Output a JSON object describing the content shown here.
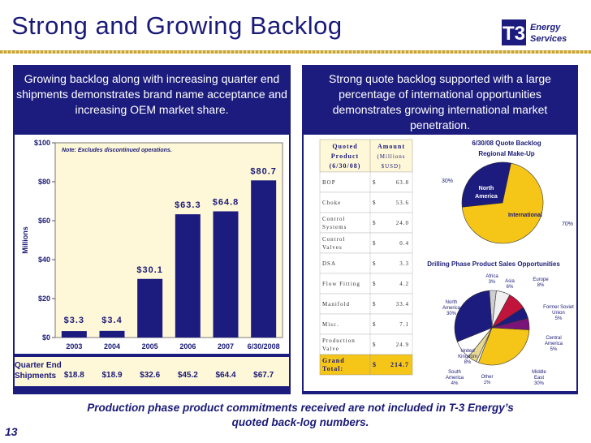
{
  "title": "Strong and Growing Backlog",
  "logo": {
    "mark": "T3",
    "line1": "Energy",
    "line2": "Services"
  },
  "left_heading": "Growing backlog along with increasing quarter end shipments demonstrates brand name acceptance and increasing OEM market share.",
  "right_heading": "Strong quote backlog supported with a large percentage of international opportunities demonstrates growing international market penetration.",
  "chart_data": [
    {
      "type": "bar",
      "note": "Note: Excludes discontinued operations.",
      "ylabel": "Millions",
      "categories": [
        "2003",
        "2004",
        "2005",
        "2006",
        "2007",
        "6/30/2008"
      ],
      "values": [
        3.3,
        3.4,
        30.1,
        63.3,
        64.8,
        80.7
      ],
      "value_labels": [
        "$3.3",
        "$3.4",
        "$30.1",
        "$63.3",
        "$64.8",
        "$80.7"
      ],
      "ylim": [
        0,
        100
      ],
      "yticks": [
        "$0",
        "$20",
        "$40",
        "$60",
        "$80",
        "$100"
      ],
      "bar_color": "#1c1c7e"
    },
    {
      "type": "pie",
      "title": "6/30/08 Quote Backlog Regional Make-Up",
      "slices": [
        {
          "label": "International",
          "value": 70,
          "pct_label": "70%",
          "color": "#f5c518"
        },
        {
          "label": "North America",
          "value": 30,
          "pct_label": "30%",
          "color": "#1c1c7e"
        }
      ]
    },
    {
      "type": "pie",
      "title": "Drilling Phase Product Sales Opportunities",
      "slices": [
        {
          "label": "Africa",
          "value": 3,
          "pct_label": "3%",
          "color": "#cfcfcf"
        },
        {
          "label": "Asia",
          "value": 6,
          "pct_label": "6%",
          "color": "#f0f0f0"
        },
        {
          "label": "Europe",
          "value": 8,
          "pct_label": "8%",
          "color": "#c0143c"
        },
        {
          "label": "Former Soviet Union",
          "value": 5,
          "pct_label": "5%",
          "color": "#1c1c7e"
        },
        {
          "label": "Central America",
          "value": 5,
          "pct_label": "5%",
          "color": "#7a1478"
        },
        {
          "label": "Middle East",
          "value": 30,
          "pct_label": "30%",
          "color": "#f5c518"
        },
        {
          "label": "Other",
          "value": 1,
          "pct_label": "1%",
          "color": "#ffffff"
        },
        {
          "label": "South America",
          "value": 4,
          "pct_label": "4%",
          "color": "#e6d890"
        },
        {
          "label": "United Kingdom",
          "value": 8,
          "pct_label": "8%",
          "color": "#ffffff"
        },
        {
          "label": "North America",
          "value": 30,
          "pct_label": "30%",
          "color": "#1c1c7e"
        }
      ]
    }
  ],
  "quarter_end": {
    "label_line1": "Quarter End",
    "label_line2": "Shipments",
    "values": [
      "$18.8",
      "$18.9",
      "$32.6",
      "$45.2",
      "$64.4",
      "$67.7"
    ]
  },
  "quote_table": {
    "headers": {
      "product_lines": [
        "Quoted",
        "Product",
        "(6/30/08)"
      ],
      "amount_lines": [
        "Amount",
        "(Millions",
        "$USD)"
      ]
    },
    "rows": [
      {
        "product": "BOP",
        "cur": "$",
        "amount": "63.8"
      },
      {
        "product": "Choke",
        "cur": "$",
        "amount": "53.6"
      },
      {
        "product": "Control Systems",
        "cur": "$",
        "amount": "24.0"
      },
      {
        "product": "Control Valves",
        "cur": "$",
        "amount": "0.4"
      },
      {
        "product": "DSA",
        "cur": "$",
        "amount": "3.3"
      },
      {
        "product": "Flow Fitting",
        "cur": "$",
        "amount": "4.2"
      },
      {
        "product": "Manifold",
        "cur": "$",
        "amount": "33.4"
      },
      {
        "product": "Misc.",
        "cur": "$",
        "amount": "7.1"
      },
      {
        "product": "Production Valve",
        "cur": "$",
        "amount": "24.9"
      }
    ],
    "total": {
      "label": "Grand Total:",
      "cur": "$",
      "amount": "214.7"
    }
  },
  "footer": "Production phase product commitments received are not included in T-3 Energy’s quoted back-log numbers.",
  "page_number": "13"
}
